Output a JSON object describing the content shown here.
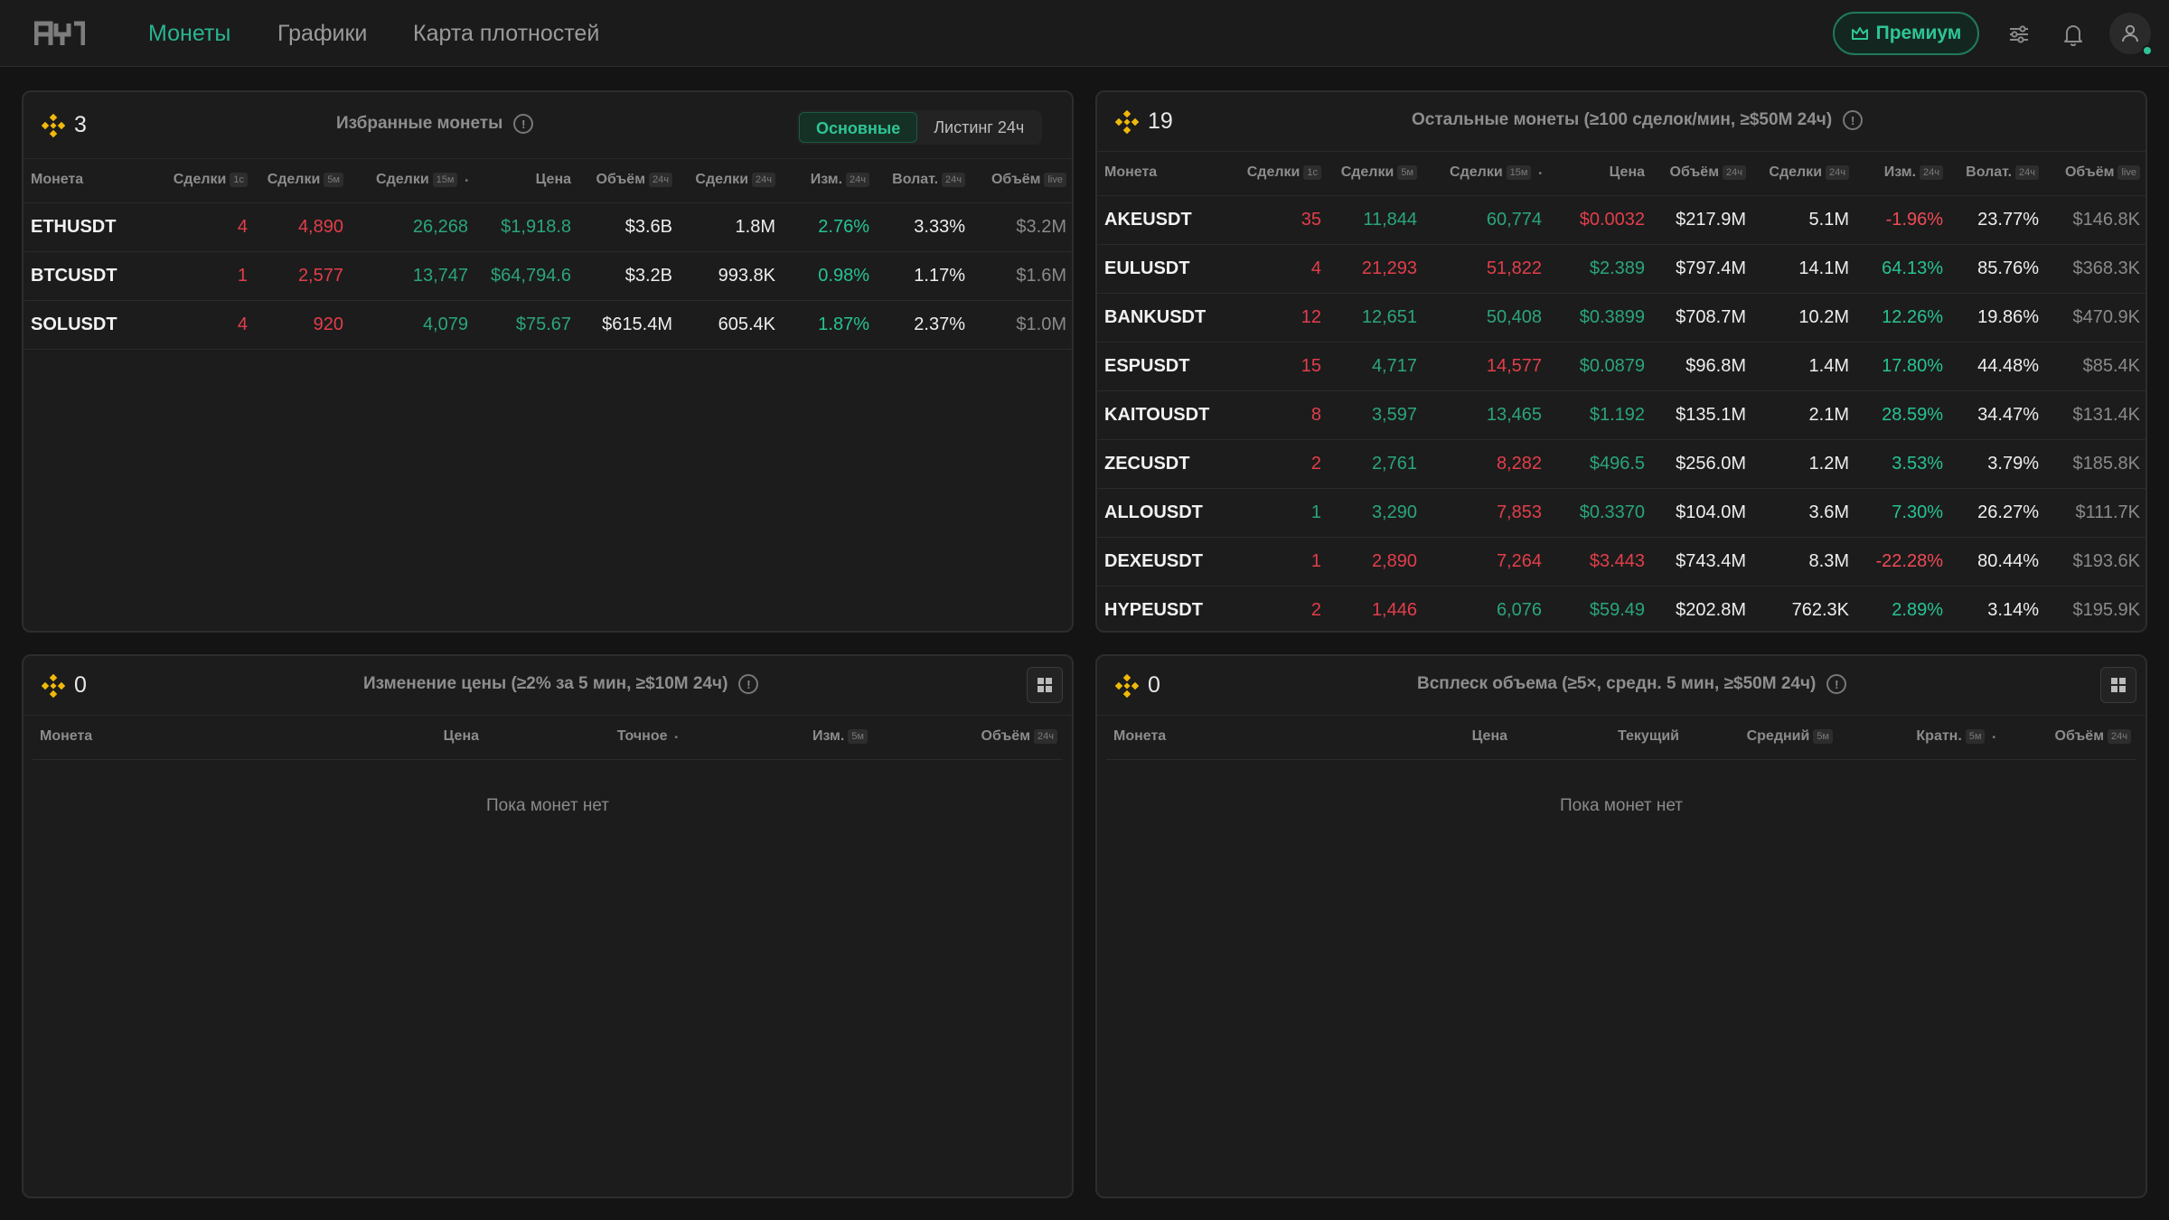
{
  "colors": {
    "accent": "#2ec596",
    "up": "#2aa57d",
    "down": "#e23e4a",
    "background": "#141414",
    "panel": "#1c1c1c",
    "exchange_icon": "#f0b90b"
  },
  "nav": {
    "logo_icon": "app-logo",
    "links": [
      "Монеты",
      "Графики",
      "Карта плотностей"
    ],
    "active_link": "Монеты",
    "premium_label": "Премиум",
    "icons": [
      "crown-icon",
      "sliders-icon",
      "bell-icon",
      "user-icon"
    ]
  },
  "favorites": {
    "count": "3",
    "title": "Избранные монеты",
    "tabs": [
      "Основные",
      "Листинг 24ч"
    ],
    "active_tab": "Основные",
    "columns": [
      {
        "label": "Монета",
        "tag": ""
      },
      {
        "label": "Сделки",
        "tag": "1с"
      },
      {
        "label": "Сделки",
        "tag": "5м"
      },
      {
        "label": "Сделки",
        "tag": "15м",
        "sorted": true
      },
      {
        "label": "Цена",
        "tag": ""
      },
      {
        "label": "Объём",
        "tag": "24ч"
      },
      {
        "label": "Сделки",
        "tag": "24ч"
      },
      {
        "label": "Изм.",
        "tag": "24ч"
      },
      {
        "label": "Волат.",
        "tag": "24ч"
      },
      {
        "label": "Объём",
        "tag": "live"
      }
    ],
    "rows": [
      {
        "symbol": "ETHUSDT",
        "t1s": "4",
        "t5m": "4,890",
        "t15m": "26,268",
        "price": "$1,918.8",
        "vol24": "$3.6B",
        "trades24": "1.8M",
        "chg24": "2.76%",
        "volat24": "3.33%",
        "vollive": "$3.2M"
      },
      {
        "symbol": "BTCUSDT",
        "t1s": "1",
        "t5m": "2,577",
        "t15m": "13,747",
        "price": "$64,794.6",
        "vol24": "$3.2B",
        "trades24": "993.8K",
        "chg24": "0.98%",
        "volat24": "1.17%",
        "vollive": "$1.6M"
      },
      {
        "symbol": "SOLUSDT",
        "t1s": "4",
        "t5m": "920",
        "t15m": "4,079",
        "price": "$75.67",
        "vol24": "$615.4M",
        "trades24": "605.4K",
        "chg24": "1.87%",
        "volat24": "2.37%",
        "vollive": "$1.0M"
      }
    ]
  },
  "others": {
    "count": "19",
    "title": "Остальные монеты (≥100 сделок/мин, ≥$50M 24ч)",
    "columns": [
      {
        "label": "Монета",
        "tag": ""
      },
      {
        "label": "Сделки",
        "tag": "1с"
      },
      {
        "label": "Сделки",
        "tag": "5м"
      },
      {
        "label": "Сделки",
        "tag": "15м",
        "sorted": true
      },
      {
        "label": "Цена",
        "tag": ""
      },
      {
        "label": "Объём",
        "tag": "24ч"
      },
      {
        "label": "Сделки",
        "tag": "24ч"
      },
      {
        "label": "Изм.",
        "tag": "24ч"
      },
      {
        "label": "Волат.",
        "tag": "24ч"
      },
      {
        "label": "Объём",
        "tag": "live"
      }
    ],
    "rows": [
      {
        "symbol": "AKEUSDT",
        "t1s": "35",
        "t5m": "11,844",
        "t15m": "60,774",
        "price": "$0.0032",
        "vol24": "$217.9M",
        "trades24": "5.1M",
        "chg24": "-1.96%",
        "volat24": "23.77%",
        "vollive": "$146.8K",
        "dir": [
          "r",
          "g",
          "g",
          "r",
          "r"
        ]
      },
      {
        "symbol": "EULUSDT",
        "t1s": "4",
        "t5m": "21,293",
        "t15m": "51,822",
        "price": "$2.389",
        "vol24": "$797.4M",
        "trades24": "14.1M",
        "chg24": "64.13%",
        "volat24": "85.76%",
        "vollive": "$368.3K",
        "dir": [
          "r",
          "r",
          "r",
          "g",
          "g"
        ]
      },
      {
        "symbol": "BANKUSDT",
        "t1s": "12",
        "t5m": "12,651",
        "t15m": "50,408",
        "price": "$0.3899",
        "vol24": "$708.7M",
        "trades24": "10.2M",
        "chg24": "12.26%",
        "volat24": "19.86%",
        "vollive": "$470.9K",
        "dir": [
          "r",
          "g",
          "g",
          "g",
          "g"
        ]
      },
      {
        "symbol": "ESPUSDT",
        "t1s": "15",
        "t5m": "4,717",
        "t15m": "14,577",
        "price": "$0.0879",
        "vol24": "$96.8M",
        "trades24": "1.4M",
        "chg24": "17.80%",
        "volat24": "44.48%",
        "vollive": "$85.4K",
        "dir": [
          "r",
          "g",
          "r",
          "g",
          "g"
        ]
      },
      {
        "symbol": "KAITOUSDT",
        "t1s": "8",
        "t5m": "3,597",
        "t15m": "13,465",
        "price": "$1.192",
        "vol24": "$135.1M",
        "trades24": "2.1M",
        "chg24": "28.59%",
        "volat24": "34.47%",
        "vollive": "$131.4K",
        "dir": [
          "r",
          "g",
          "g",
          "g",
          "g"
        ]
      },
      {
        "symbol": "ZECUSDT",
        "t1s": "2",
        "t5m": "2,761",
        "t15m": "8,282",
        "price": "$496.5",
        "vol24": "$256.0M",
        "trades24": "1.2M",
        "chg24": "3.53%",
        "volat24": "3.79%",
        "vollive": "$185.8K",
        "dir": [
          "r",
          "g",
          "r",
          "g",
          "g"
        ]
      },
      {
        "symbol": "ALLOUSDT",
        "t1s": "1",
        "t5m": "3,290",
        "t15m": "7,853",
        "price": "$0.3370",
        "vol24": "$104.0M",
        "trades24": "3.6M",
        "chg24": "7.30%",
        "volat24": "26.27%",
        "vollive": "$111.7K",
        "dir": [
          "g",
          "g",
          "r",
          "g",
          "g"
        ]
      },
      {
        "symbol": "DEXEUSDT",
        "t1s": "1",
        "t5m": "2,890",
        "t15m": "7,264",
        "price": "$3.443",
        "vol24": "$743.4M",
        "trades24": "8.3M",
        "chg24": "-22.28%",
        "volat24": "80.44%",
        "vollive": "$193.6K",
        "dir": [
          "r",
          "r",
          "r",
          "r",
          "r"
        ]
      },
      {
        "symbol": "HYPEUSDT",
        "t1s": "2",
        "t5m": "1,446",
        "t15m": "6,076",
        "price": "$59.49",
        "vol24": "$202.8M",
        "trades24": "762.3K",
        "chg24": "2.89%",
        "volat24": "3.14%",
        "vollive": "$195.9K",
        "dir": [
          "r",
          "r",
          "g",
          "g",
          "g"
        ]
      }
    ]
  },
  "price_change": {
    "count": "0",
    "title": "Изменение цены (≥2% за 5 мин, ≥$10M 24ч)",
    "columns": [
      {
        "label": "Монета",
        "tag": ""
      },
      {
        "label": "Цена",
        "tag": ""
      },
      {
        "label": "Точное",
        "tag": "",
        "sorted": true
      },
      {
        "label": "Изм.",
        "tag": "5м"
      },
      {
        "label": "Объём",
        "tag": "24ч"
      }
    ],
    "empty_text": "Пока монет нет"
  },
  "volume_spike": {
    "count": "0",
    "title": "Всплеск объема (≥5×, средн. 5 мин, ≥$50M 24ч)",
    "columns": [
      {
        "label": "Монета",
        "tag": ""
      },
      {
        "label": "Цена",
        "tag": ""
      },
      {
        "label": "Текущий",
        "tag": ""
      },
      {
        "label": "Средний",
        "tag": "5м"
      },
      {
        "label": "Кратн.",
        "tag": "5м",
        "sorted": true
      },
      {
        "label": "Объём",
        "tag": "24ч"
      }
    ],
    "empty_text": "Пока монет нет"
  }
}
